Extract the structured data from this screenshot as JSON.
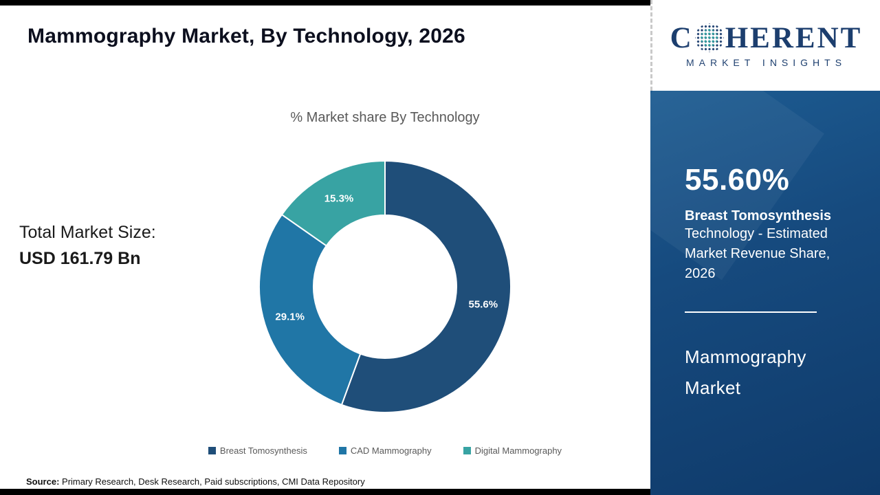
{
  "page": {
    "title": "Mammography Market, By Technology, 2026",
    "source_label": "Source:",
    "source_text": " Primary Research, Desk Research, Paid subscriptions, CMI Data Repository"
  },
  "logo": {
    "word_start": "C",
    "word_end": "HERENT",
    "subtitle": "MARKET INSIGHTS",
    "navy": "#1c3e6e",
    "teal": "#2fa09f"
  },
  "left_stats": {
    "label": "Total Market Size:",
    "value": "USD 161.79 Bn"
  },
  "chart_data": {
    "type": "pie",
    "donut": true,
    "title": "% Market share By Technology",
    "categories": [
      "Breast Tomosynthesis",
      "CAD Mammography",
      "Digital Mammography"
    ],
    "values": [
      55.6,
      29.1,
      15.3
    ],
    "labels": [
      "55.6%",
      "29.1%",
      "15.3%"
    ],
    "colors": [
      "#1f4e79",
      "#2076a6",
      "#38a3a3"
    ],
    "start_angle": "top",
    "direction": "clockwise",
    "legend_position": "bottom"
  },
  "sidebar": {
    "headline": "55.60%",
    "line1": "Breast Tomosynthesis",
    "line2": "Technology - Estimated",
    "line3": "Market Revenue Share,",
    "line4": "2026",
    "product_line1": "Mammography",
    "product_line2": "Market"
  }
}
